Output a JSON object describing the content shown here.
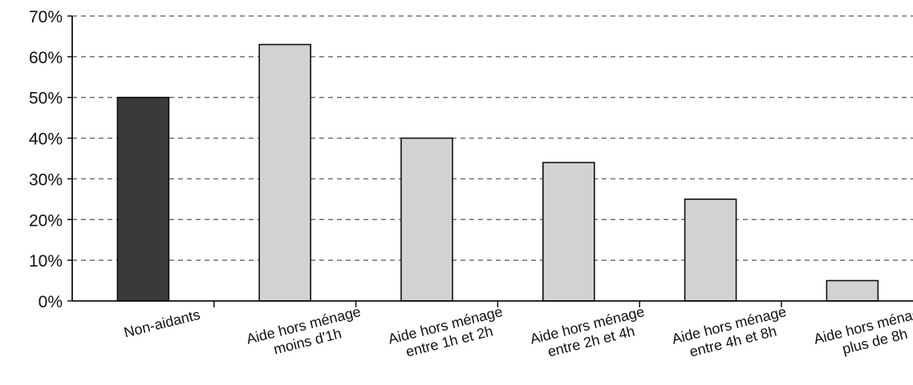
{
  "chart_data": {
    "type": "bar",
    "title": "",
    "xlabel": "",
    "ylabel": "",
    "ylim": [
      0,
      70
    ],
    "yticks": [
      0,
      10,
      20,
      30,
      40,
      50,
      60,
      70
    ],
    "ytick_labels": [
      "0%",
      "10%",
      "20%",
      "30%",
      "40%",
      "50%",
      "60%",
      "70%"
    ],
    "grid": "horizontal-dashed",
    "categories": [
      [
        "Non-aidants"
      ],
      [
        "Aide hors ménage",
        "moins d'1h"
      ],
      [
        "Aide hors ménage",
        "entre 1h et 2h"
      ],
      [
        "Aide hors ménage",
        "entre 2h et 4h"
      ],
      [
        "Aide hors ménage",
        "entre 4h et 8h"
      ],
      [
        "Aide hors ménage",
        "plus de 8h"
      ]
    ],
    "values": [
      50,
      63,
      40,
      34,
      25,
      5
    ],
    "bar_colors": [
      "#3a3a3a",
      "#d2d2d2",
      "#d2d2d2",
      "#d2d2d2",
      "#d2d2d2",
      "#d2d2d2"
    ],
    "gridline_color": "#555555",
    "axis_color": "#111111"
  }
}
